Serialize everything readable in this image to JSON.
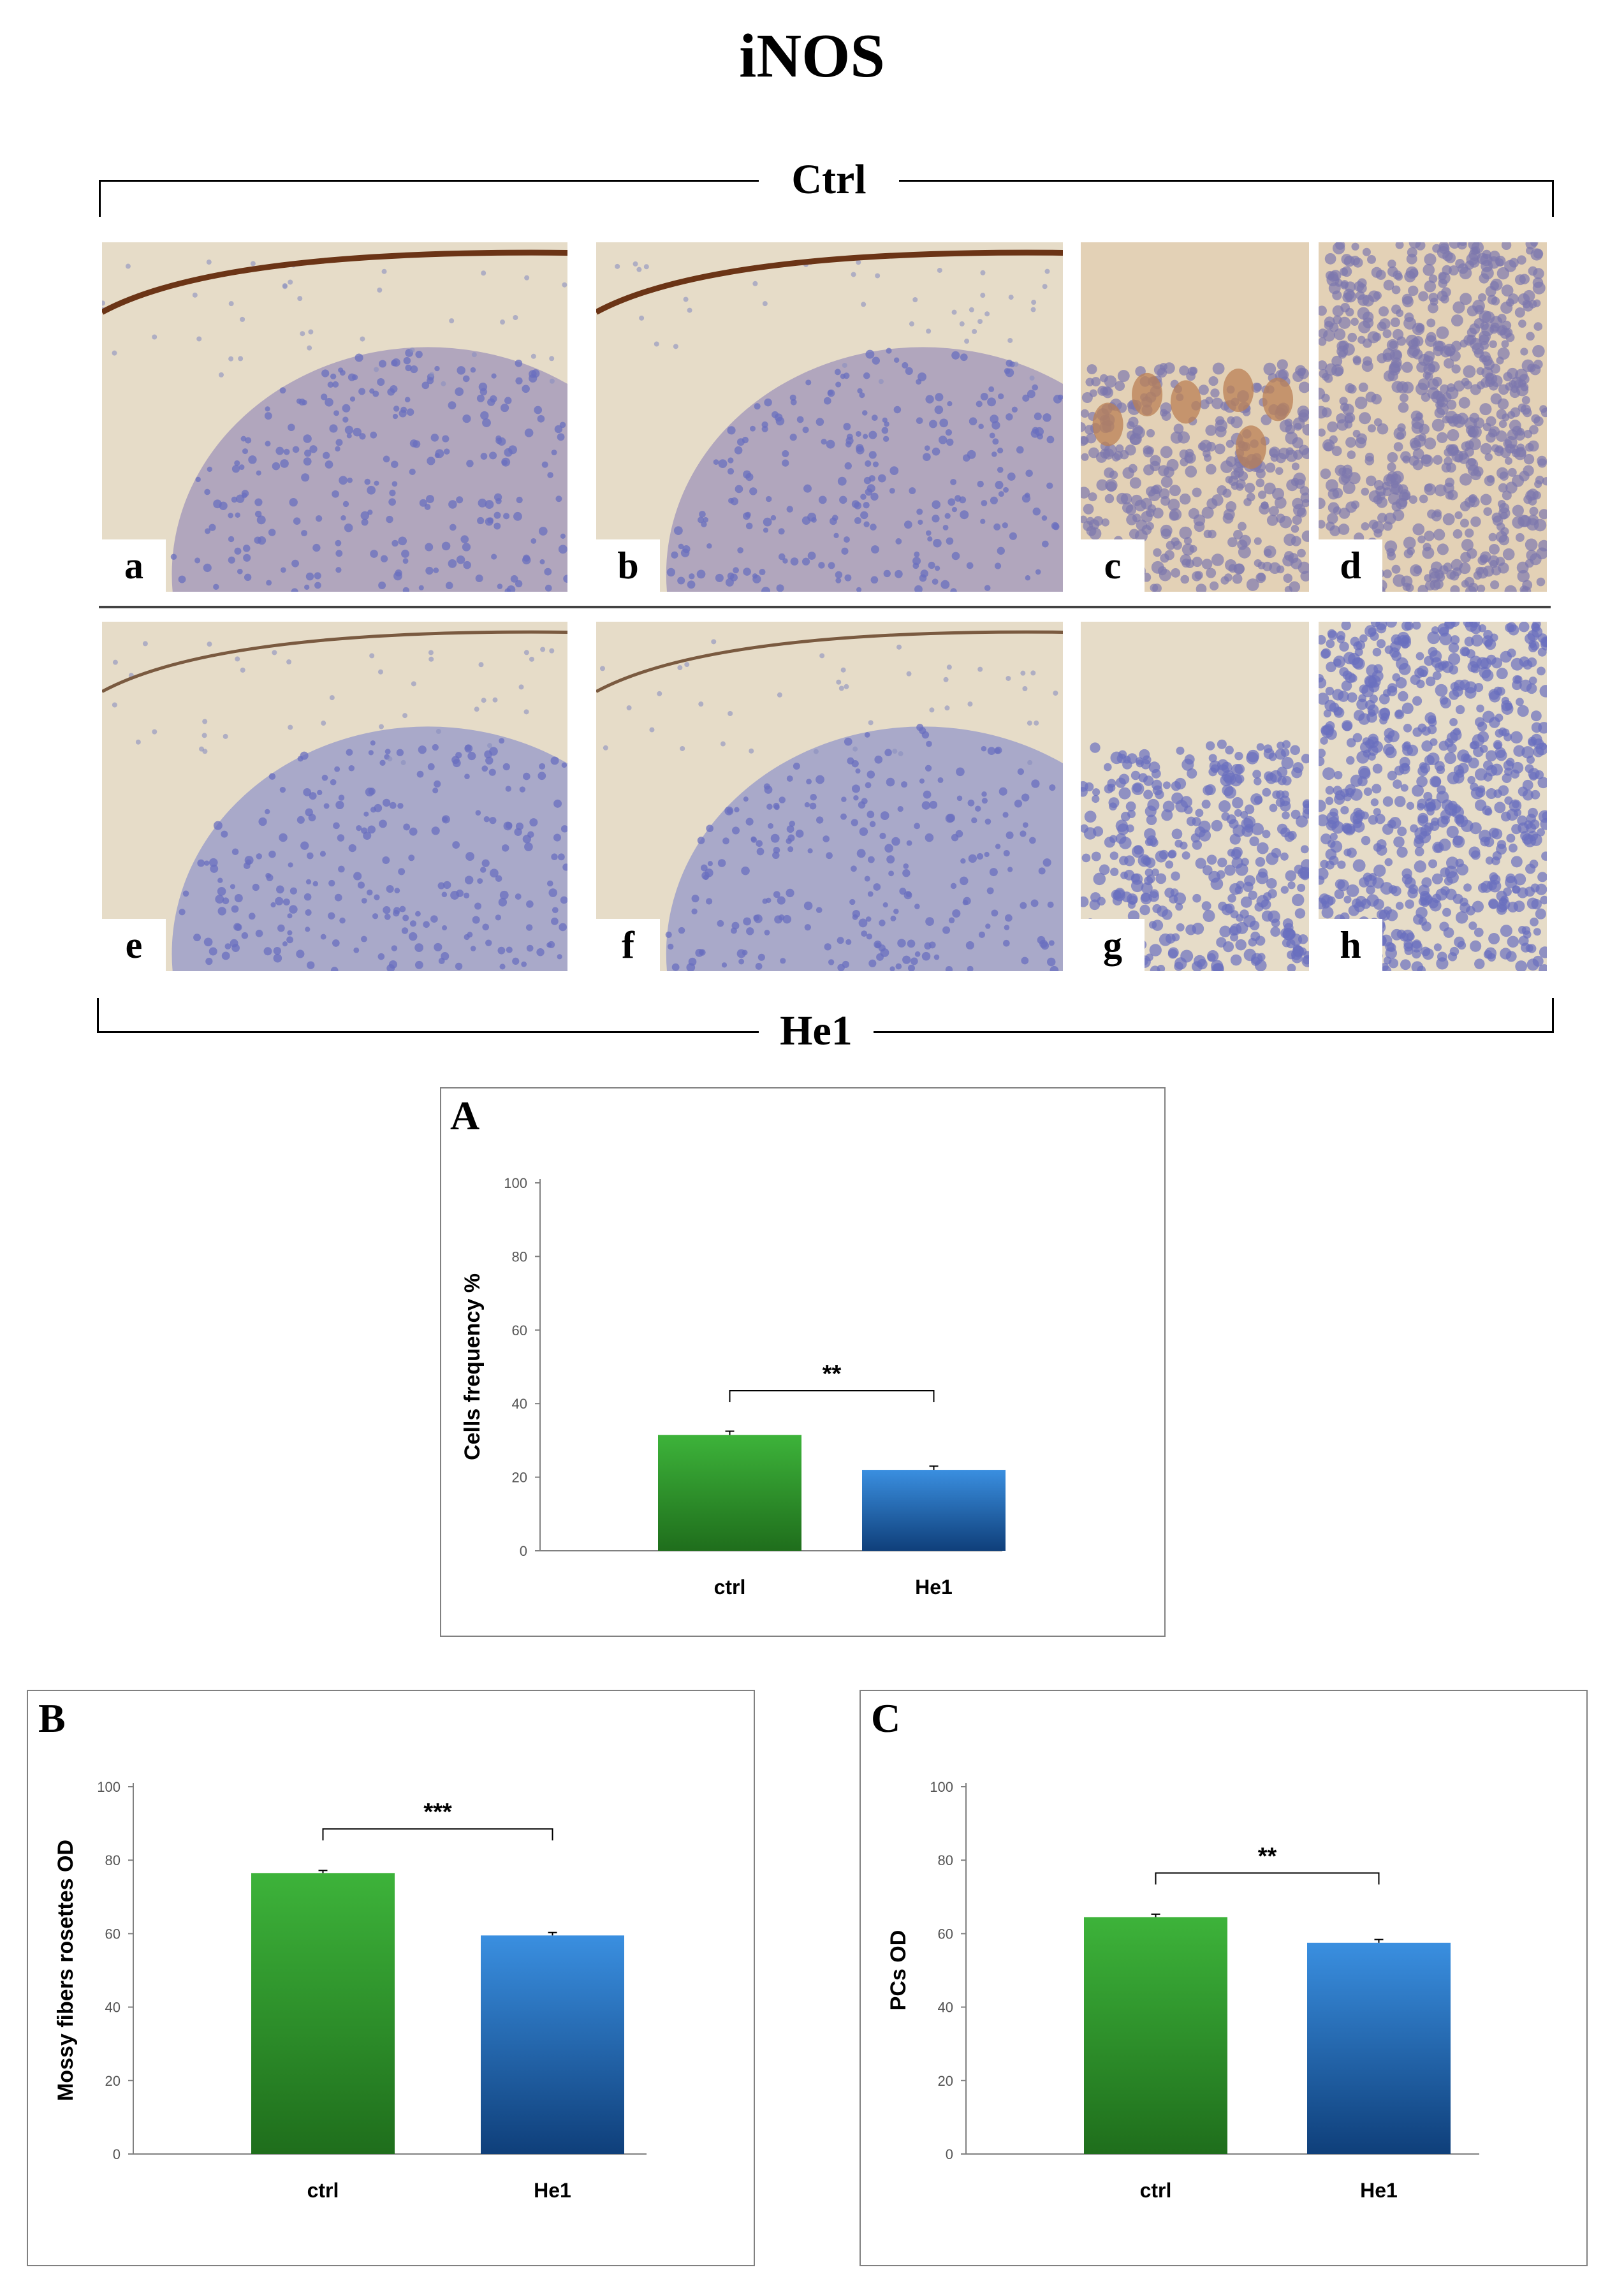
{
  "figure": {
    "title": "iNOS",
    "groups": {
      "top": "Ctrl",
      "bottom": "He1"
    },
    "panels": [
      "a",
      "b",
      "c",
      "d",
      "e",
      "f",
      "g",
      "h"
    ]
  },
  "colors": {
    "ctrl_bar_top": "#3db33a",
    "ctrl_bar_bottom": "#1f6e1c",
    "he1_bar_top": "#3a8fe0",
    "he1_bar_bottom": "#0f3f7a",
    "tissue_background": "#e6dcc8",
    "granular_layer": "#6a6fbf",
    "brown_stain": "#6b3416"
  },
  "chart_data": [
    {
      "panel_label": "A",
      "type": "bar",
      "categories": [
        "ctrl",
        "He1"
      ],
      "values": [
        31.5,
        22
      ],
      "error": [
        1,
        1
      ],
      "ylabel": "Cells frequency %",
      "ylim": [
        0,
        100
      ],
      "yticks": [
        "0",
        "20",
        "40",
        "60",
        "80",
        "100"
      ],
      "significance": "**"
    },
    {
      "panel_label": "B",
      "type": "bar",
      "categories": [
        "ctrl",
        "He1"
      ],
      "values": [
        76.5,
        59.5
      ],
      "error": [
        0.7,
        0.8
      ],
      "ylabel": "Mossy fibers rosettes OD",
      "ylim": [
        0,
        100
      ],
      "yticks": [
        "0",
        "20",
        "40",
        "60",
        "80",
        "100"
      ],
      "significance": "***"
    },
    {
      "panel_label": "C",
      "type": "bar",
      "categories": [
        "ctrl",
        "He1"
      ],
      "values": [
        64.5,
        57.5
      ],
      "error": [
        0.8,
        0.9
      ],
      "ylabel": "PCs OD",
      "ylim": [
        0,
        100
      ],
      "yticks": [
        "0",
        "20",
        "40",
        "60",
        "80",
        "100"
      ],
      "significance": "**"
    }
  ]
}
